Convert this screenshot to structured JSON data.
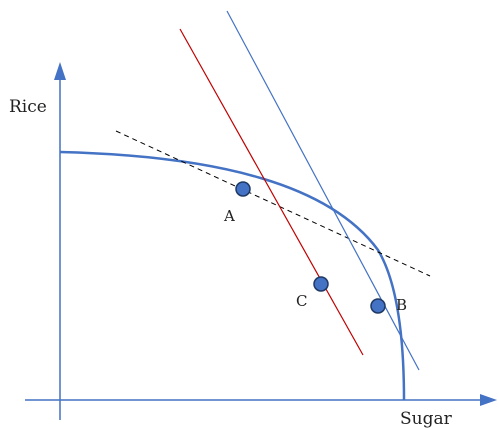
{
  "axes": {
    "y_label": "Rice",
    "x_label": "Sugar",
    "color": "#4472c4"
  },
  "curve": {
    "color": "#4472c4"
  },
  "lines": {
    "tangent": {
      "color": "#000000",
      "style": "dashed"
    },
    "red_line": {
      "color": "#c00000"
    },
    "blue_line": {
      "color": "#4472c4"
    }
  },
  "points": [
    {
      "label": "A",
      "color": "#4472c4",
      "edge": "#1f3864"
    },
    {
      "label": "C",
      "color": "#4472c4",
      "edge": "#1f3864"
    },
    {
      "label": "B",
      "color": "#4472c4",
      "edge": "#1f3864"
    }
  ]
}
